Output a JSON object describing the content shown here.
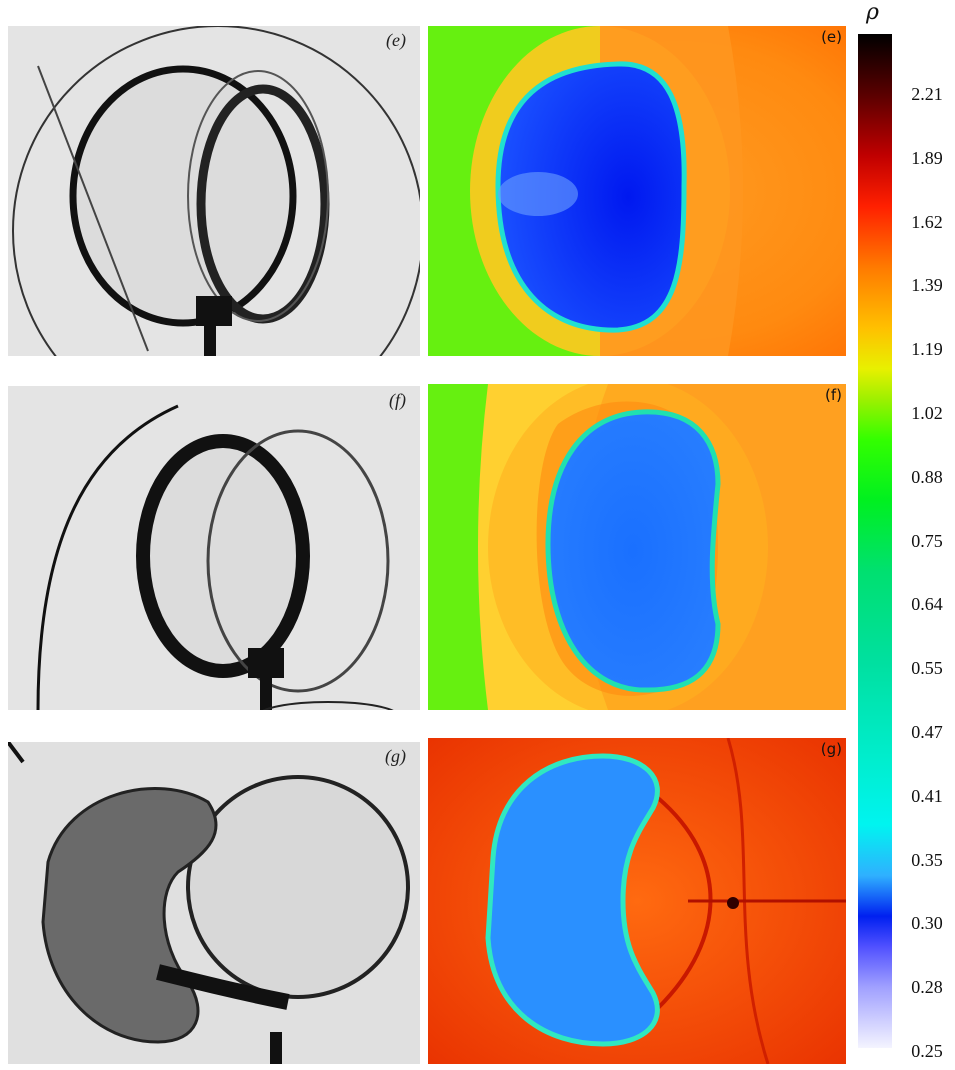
{
  "panels": [
    {
      "photo_label": "(e)",
      "sim_label": "(e)"
    },
    {
      "photo_label": "(f)",
      "sim_label": "(f)"
    },
    {
      "photo_label": "(g)",
      "sim_label": "(g)"
    }
  ],
  "colorbar": {
    "symbol": "ρ",
    "ticks": [
      "2.21",
      "1.89",
      "1.62",
      "1.39",
      "1.19",
      "1.02",
      "0.88",
      "0.75",
      "0.64",
      "0.55",
      "0.47",
      "0.41",
      "0.35",
      "0.30",
      "0.28",
      "0.25"
    ]
  }
}
